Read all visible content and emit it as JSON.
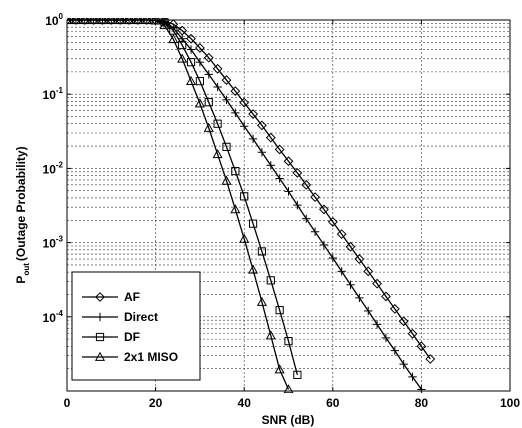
{
  "chart_data": {
    "type": "line",
    "xlabel": "SNR (dB)",
    "ylabel_main": "P",
    "ylabel_sub": "out",
    "ylabel_rest": "(Outage Probability)",
    "xlim": [
      0,
      100
    ],
    "ylim": [
      1e-05,
      1
    ],
    "yscale": "log",
    "x_ticks": [
      "0",
      "20",
      "40",
      "60",
      "80",
      "100"
    ],
    "y_ticks": [
      {
        "base": "10",
        "exp": "0"
      },
      {
        "base": "10",
        "exp": "-1"
      },
      {
        "base": "10",
        "exp": "-2"
      },
      {
        "base": "10",
        "exp": "-3"
      },
      {
        "base": "10",
        "exp": "-4"
      }
    ],
    "grid": true,
    "legend_position": "bottom-left",
    "series": [
      {
        "name": "AF",
        "marker": "diamond",
        "x": [
          0,
          2,
          4,
          6,
          8,
          10,
          12,
          14,
          16,
          18,
          20,
          22,
          24,
          26,
          28,
          30,
          32,
          34,
          36,
          38,
          40,
          42,
          44,
          46,
          48,
          50,
          52,
          54,
          56,
          58,
          60,
          62,
          64,
          66,
          68,
          70,
          72,
          74,
          76,
          78,
          80,
          82
        ],
        "y": [
          1,
          1,
          1,
          1,
          1,
          1,
          1,
          1,
          1,
          1,
          0.995,
          0.97,
          0.88,
          0.72,
          0.56,
          0.42,
          0.31,
          0.22,
          0.155,
          0.11,
          0.077,
          0.054,
          0.038,
          0.026,
          0.018,
          0.0125,
          0.0087,
          0.006,
          0.0041,
          0.0028,
          0.0019,
          0.0013,
          0.00088,
          0.0006,
          0.00041,
          0.00028,
          0.000188,
          0.000128,
          8.7e-05,
          5.9e-05,
          4e-05,
          2.7e-05
        ]
      },
      {
        "name": "Direct",
        "marker": "plus",
        "x": [
          0,
          2,
          4,
          6,
          8,
          10,
          12,
          14,
          16,
          18,
          20,
          22,
          24,
          26,
          28,
          30,
          32,
          34,
          36,
          38,
          40,
          42,
          44,
          46,
          48,
          50,
          52,
          54,
          56,
          58,
          60,
          62,
          64,
          66,
          68,
          70,
          72,
          74,
          76,
          78,
          80
        ],
        "y": [
          1,
          1,
          1,
          1,
          1,
          1,
          1,
          1,
          1,
          1,
          0.995,
          0.95,
          0.78,
          0.56,
          0.4,
          0.27,
          0.185,
          0.125,
          0.084,
          0.056,
          0.037,
          0.025,
          0.0165,
          0.011,
          0.0073,
          0.0049,
          0.0032,
          0.0021,
          0.0014,
          0.00093,
          0.00062,
          0.00041,
          0.00027,
          0.00018,
          0.00012,
          7.9e-05,
          5.2e-05,
          3.5e-05,
          2.3e-05,
          1.55e-05,
          1.05e-05
        ]
      },
      {
        "name": "DF",
        "marker": "square",
        "x": [
          0,
          2,
          4,
          6,
          8,
          10,
          12,
          14,
          16,
          18,
          20,
          22,
          24,
          26,
          28,
          30,
          32,
          34,
          36,
          38,
          40,
          42,
          44,
          46,
          48,
          50,
          52
        ],
        "y": [
          1,
          1,
          1,
          1,
          1,
          1,
          1,
          1,
          1,
          1,
          0.99,
          0.93,
          0.72,
          0.46,
          0.27,
          0.15,
          0.078,
          0.04,
          0.0195,
          0.0092,
          0.0042,
          0.0018,
          0.00076,
          0.00031,
          0.000123,
          4.7e-05,
          1.65e-05
        ]
      },
      {
        "name": "2x1 MISO",
        "marker": "triangle",
        "x": [
          0,
          2,
          4,
          6,
          8,
          10,
          12,
          14,
          16,
          18,
          20,
          22,
          24,
          26,
          28,
          30,
          32,
          34,
          36,
          38,
          40,
          42,
          44,
          46,
          48,
          50
        ],
        "y": [
          1,
          1,
          1,
          1,
          1,
          1,
          1,
          1,
          1,
          1,
          0.98,
          0.85,
          0.55,
          0.3,
          0.15,
          0.075,
          0.035,
          0.0155,
          0.0068,
          0.0028,
          0.00112,
          0.00043,
          0.000158,
          5.6e-05,
          1.95e-05,
          1.05e-05
        ]
      }
    ]
  }
}
